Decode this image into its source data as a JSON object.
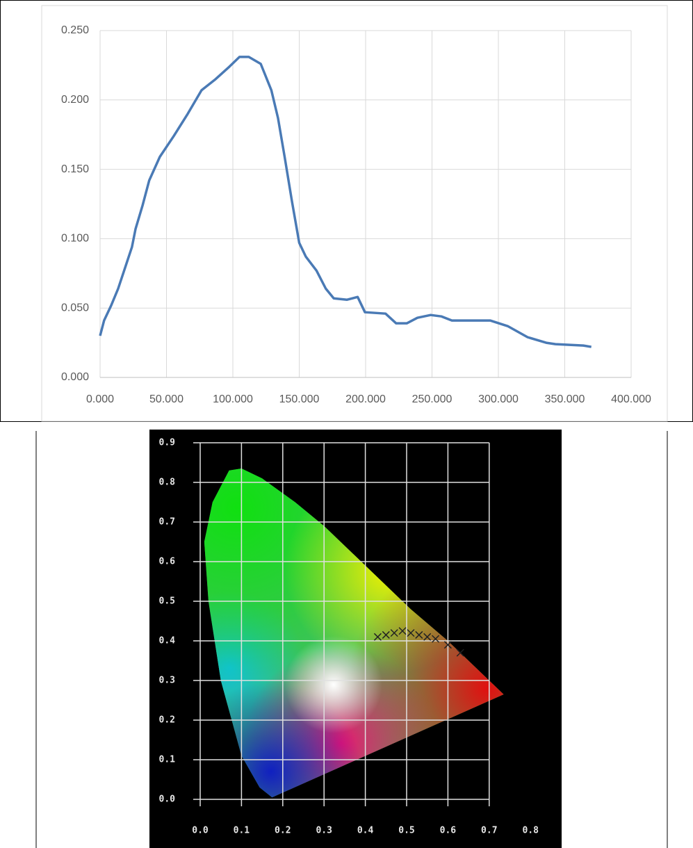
{
  "chart_data": [
    {
      "type": "line",
      "color": "#4a7ab5",
      "grid": true,
      "x": [
        0,
        3,
        8.4,
        13.6,
        18.8,
        24,
        26.7,
        32,
        37,
        45,
        55.5,
        66,
        76.4,
        87,
        97.4,
        105,
        112,
        121,
        129,
        134,
        139,
        144.5,
        150,
        155,
        163,
        170,
        176,
        186,
        194,
        199.5,
        215,
        223,
        231,
        239,
        249,
        257,
        265,
        294,
        307,
        322,
        336,
        343,
        364,
        370
      ],
      "values": [
        0.03,
        0.041,
        0.052,
        0.064,
        0.079,
        0.094,
        0.107,
        0.124,
        0.142,
        0.159,
        0.174,
        0.19,
        0.207,
        0.215,
        0.224,
        0.231,
        0.231,
        0.226,
        0.207,
        0.187,
        0.159,
        0.127,
        0.097,
        0.087,
        0.077,
        0.064,
        0.057,
        0.056,
        0.058,
        0.047,
        0.046,
        0.039,
        0.039,
        0.043,
        0.045,
        0.044,
        0.041,
        0.041,
        0.037,
        0.029,
        0.025,
        0.024,
        0.023,
        0.022
      ],
      "xlim": [
        0,
        400
      ],
      "xticks": [
        {
          "value": 0,
          "label": "0.000"
        },
        {
          "value": 50,
          "label": "50.000"
        },
        {
          "value": 100,
          "label": "100.000"
        },
        {
          "value": 150,
          "label": "150.000"
        },
        {
          "value": 200,
          "label": "200.000"
        },
        {
          "value": 250,
          "label": "250.000"
        },
        {
          "value": 300,
          "label": "300.000"
        },
        {
          "value": 350,
          "label": "350.000"
        },
        {
          "value": 400,
          "label": "400.000"
        }
      ],
      "ylim": [
        0,
        0.25
      ],
      "yticks": [
        {
          "value": 0,
          "label": "0.000"
        },
        {
          "value": 0.05,
          "label": "0.050"
        },
        {
          "value": 0.1,
          "label": "0.100"
        },
        {
          "value": 0.15,
          "label": "0.150"
        },
        {
          "value": 0.2,
          "label": "0.200"
        },
        {
          "value": 0.25,
          "label": "0.250"
        }
      ]
    },
    {
      "type": "scatter",
      "color": "#222222",
      "grid": true,
      "x": [
        0.43,
        0.45,
        0.47,
        0.49,
        0.51,
        0.53,
        0.55,
        0.57,
        0.6,
        0.63
      ],
      "values": [
        0.41,
        0.415,
        0.42,
        0.425,
        0.42,
        0.415,
        0.41,
        0.405,
        0.39,
        0.37
      ],
      "xlim": [
        0,
        0.8
      ],
      "xticks": [
        {
          "value": 0,
          "label": "0.0"
        },
        {
          "value": 0.1,
          "label": "0.1"
        },
        {
          "value": 0.2,
          "label": "0.2"
        },
        {
          "value": 0.3,
          "label": "0.3"
        },
        {
          "value": 0.4,
          "label": "0.4"
        },
        {
          "value": 0.5,
          "label": "0.5"
        },
        {
          "value": 0.6,
          "label": "0.6"
        },
        {
          "value": 0.7,
          "label": "0.7"
        },
        {
          "value": 0.8,
          "label": "0.8"
        }
      ],
      "ylim": [
        0,
        0.9
      ],
      "yticks": [
        {
          "value": 0,
          "label": "0.0"
        },
        {
          "value": 0.1,
          "label": "0.1"
        },
        {
          "value": 0.2,
          "label": "0.2"
        },
        {
          "value": 0.3,
          "label": "0.3"
        },
        {
          "value": 0.4,
          "label": "0.4"
        },
        {
          "value": 0.5,
          "label": "0.5"
        },
        {
          "value": 0.6,
          "label": "0.6"
        },
        {
          "value": 0.7,
          "label": "0.7"
        },
        {
          "value": 0.8,
          "label": "0.8"
        },
        {
          "value": 0.9,
          "label": "0.9"
        }
      ]
    }
  ]
}
